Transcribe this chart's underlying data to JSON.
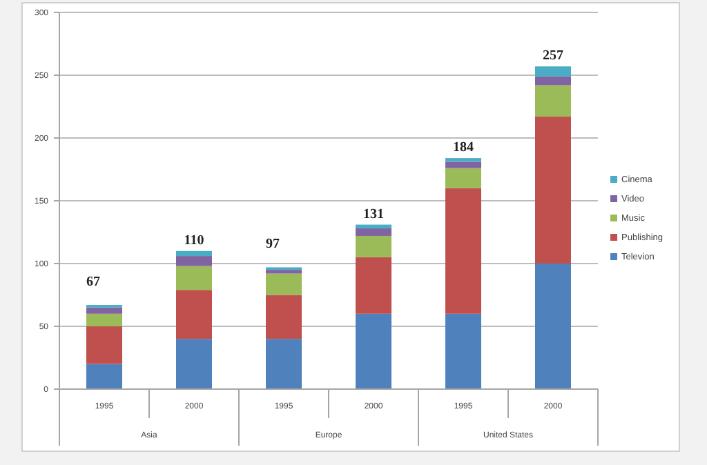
{
  "chart_data": {
    "type": "bar",
    "stacked": true,
    "categories": [
      "1995",
      "2000",
      "1995",
      "2000",
      "1995",
      "2000"
    ],
    "annotations": [
      "Asia",
      "Europe",
      "United States"
    ],
    "series": [
      {
        "name": "Televion",
        "color": "#4f81bd",
        "values": [
          20,
          40,
          40,
          60,
          60,
          100
        ]
      },
      {
        "name": "Publishing",
        "color": "#c0504d",
        "values": [
          30,
          39,
          35,
          45,
          100,
          117
        ]
      },
      {
        "name": "Music",
        "color": "#9bbb59",
        "values": [
          10,
          19,
          17,
          17,
          16,
          25
        ]
      },
      {
        "name": "Video",
        "color": "#8064a2",
        "values": [
          5,
          8,
          3,
          6,
          5,
          7
        ]
      },
      {
        "name": "Cinema",
        "color": "#4bacc6",
        "values": [
          2,
          4,
          2,
          3,
          3,
          8
        ]
      }
    ],
    "totals": [
      "67",
      "110",
      "97",
      "131",
      "184",
      "257"
    ],
    "ylim": [
      0,
      300
    ],
    "yticks": [
      0,
      50,
      100,
      150,
      200,
      250,
      300
    ],
    "grid": "y",
    "legend": "right"
  }
}
